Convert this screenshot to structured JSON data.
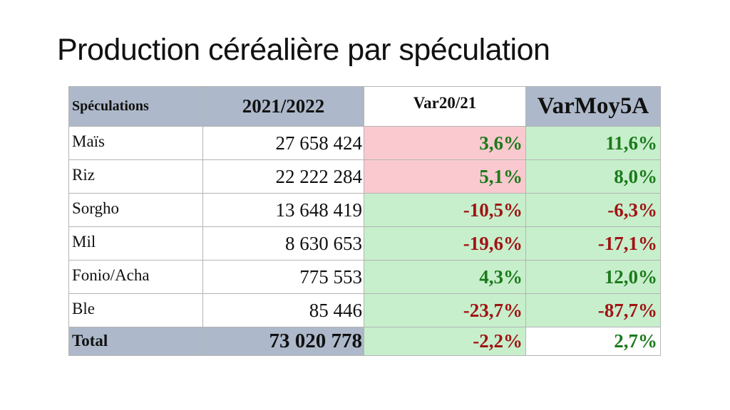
{
  "title": "Production céréalière par spéculation",
  "table": {
    "headers": [
      "Spéculations",
      "2021/2022",
      "Var20/21",
      "VarMoy5A"
    ],
    "rows": [
      {
        "name": "Maïs",
        "value": "27 658 424",
        "var": "3,6%",
        "varmoy": "11,6%"
      },
      {
        "name": "Riz",
        "value": "22 222 284",
        "var": "5,1%",
        "varmoy": "8,0%"
      },
      {
        "name": "Sorgho",
        "value": "13 648 419",
        "var": "-10,5%",
        "varmoy": "-6,3%"
      },
      {
        "name": "Mil",
        "value": "8 630 653",
        "var": "-19,6%",
        "varmoy": "-17,1%"
      },
      {
        "name": "Fonio/Acha",
        "value": "775 553",
        "var": "4,3%",
        "varmoy": "12,0%"
      },
      {
        "name": "Ble",
        "value": "85 446",
        "var": "-23,7%",
        "varmoy": "-87,7%"
      }
    ],
    "total": {
      "name": "Total",
      "value": "73 020 778",
      "var": "-2,2%",
      "varmoy": "2,7%"
    }
  },
  "colors": {
    "header_bg": "#adb9ca",
    "positive_text": "#1c7a1c",
    "negative_text": "#a01414",
    "pink_fill": "#f9c9cf",
    "green_fill": "#c7efcc"
  }
}
